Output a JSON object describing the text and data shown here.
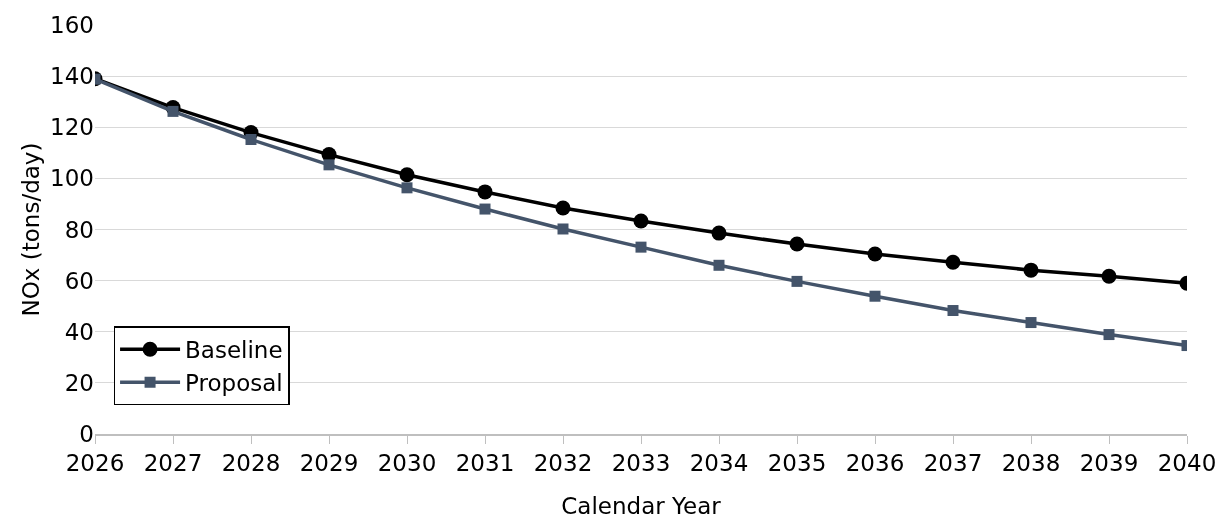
{
  "chart_data": {
    "type": "line",
    "xlabel": "Calendar Year",
    "ylabel": "NOx (tons/day)",
    "x": [
      2026,
      2027,
      2028,
      2029,
      2030,
      2031,
      2032,
      2033,
      2034,
      2035,
      2036,
      2037,
      2038,
      2039,
      2040
    ],
    "series": [
      {
        "name": "Baseline",
        "color": "#000000",
        "marker": "circle",
        "values": [
          139,
          127.7,
          117.9,
          109.3,
          101.4,
          94.7,
          88.4,
          83.3,
          78.6,
          74.3,
          70.4,
          67.2,
          64.1,
          61.7,
          59
        ]
      },
      {
        "name": "Proposal",
        "color": "#44546a",
        "marker": "square",
        "values": [
          138.8,
          126.2,
          115.2,
          105.3,
          96.3,
          88,
          80.2,
          73.1,
          66,
          59.7,
          53.9,
          48.3,
          43.6,
          38.9,
          34.6
        ]
      }
    ],
    "xlim": [
      2026,
      2040
    ],
    "xticks": [
      2026,
      2027,
      2028,
      2029,
      2030,
      2031,
      2032,
      2033,
      2034,
      2035,
      2036,
      2037,
      2038,
      2039,
      2040
    ],
    "ylim": [
      0,
      160
    ],
    "yticks": [
      0,
      20,
      40,
      60,
      80,
      100,
      120,
      140,
      160
    ],
    "grid": "y",
    "legend": "bottom left",
    "line_style": "solid"
  }
}
